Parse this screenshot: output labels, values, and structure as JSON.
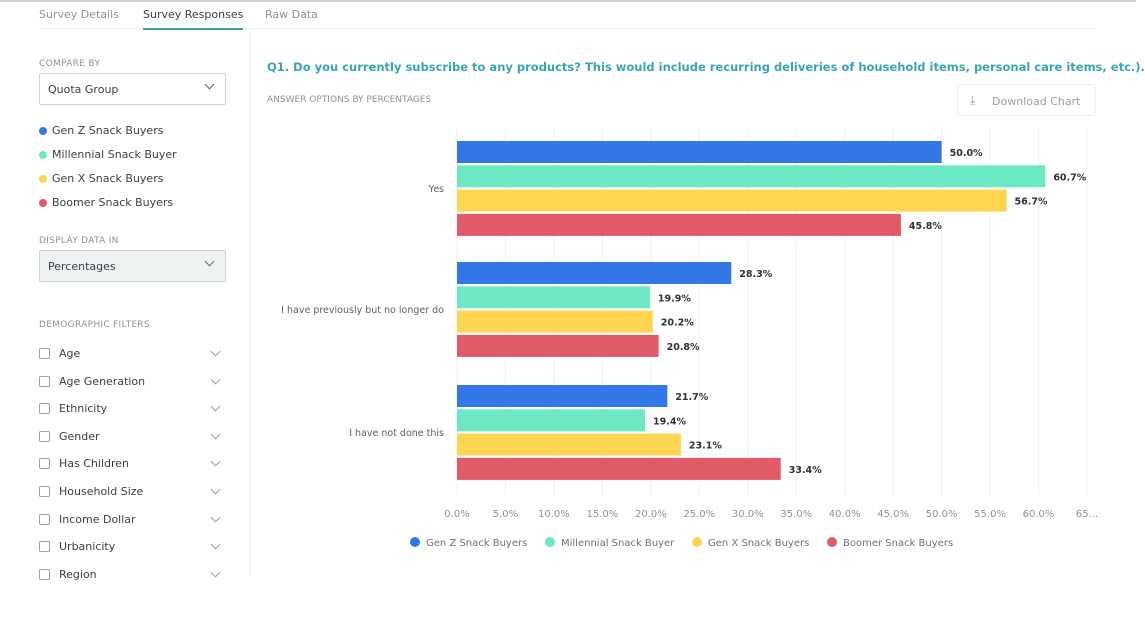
{
  "tabs": [
    "Survey Details",
    "Survey Responses",
    "Raw Data"
  ],
  "active_tab": 1,
  "sidebar": {
    "compare_by_label": "COMPARE BY",
    "compare_by_value": "Quota Group",
    "groups": [
      "Gen Z Snack Buyers",
      "Millennial Snack Buyer",
      "Gen X Snack Buyers",
      "Boomer Snack Buyers"
    ],
    "display_label": "DISPLAY DATA IN",
    "display_value": "Percentages",
    "filters_label": "DEMOGRAPHIC FILTERS",
    "filters": [
      "Age",
      "Age Generation",
      "Ethnicity",
      "Gender",
      "Has Children",
      "Household Size",
      "Income Dollar",
      "Urbanicity",
      "Region"
    ]
  },
  "main": {
    "question": "Q1. Do you currently subscribe to any products? This would include recurring deliveries of household items, personal care items, etc.).",
    "subtitle": "ANSWER OPTIONS BY PERCENTAGES",
    "download_label": "Download Chart",
    "download_icon": "download-icon"
  },
  "colors": {
    "Gen Z Snack Buyers": "#3478e8",
    "Millennial Snack Buyer": "#6de8c4",
    "Gen X Snack Buyers": "#fdd550",
    "Boomer Snack Buyers": "#e05a67",
    "accent": "#3aa5ae"
  },
  "chart_data": {
    "type": "bar",
    "orientation": "horizontal",
    "categories": [
      "Yes",
      "I have previously but no longer do",
      "I have not done this"
    ],
    "series": [
      {
        "name": "Gen Z Snack Buyers",
        "values": [
          50.0,
          28.3,
          21.7
        ]
      },
      {
        "name": "Millennial Snack Buyer",
        "values": [
          60.7,
          19.9,
          19.4
        ]
      },
      {
        "name": "Gen X Snack Buyers",
        "values": [
          56.7,
          20.2,
          23.1
        ]
      },
      {
        "name": "Boomer Snack Buyers",
        "values": [
          45.8,
          20.8,
          33.4
        ]
      }
    ],
    "xlim": [
      0,
      65
    ],
    "xticks": [
      "0.0%",
      "5.0%",
      "10.0%",
      "15.0%",
      "20.0%",
      "25.0%",
      "30.0%",
      "35.0%",
      "40.0%",
      "45.0%",
      "50.0%",
      "55.0%",
      "60.0%",
      "65..."
    ],
    "grid": true,
    "legend": "bottom"
  }
}
